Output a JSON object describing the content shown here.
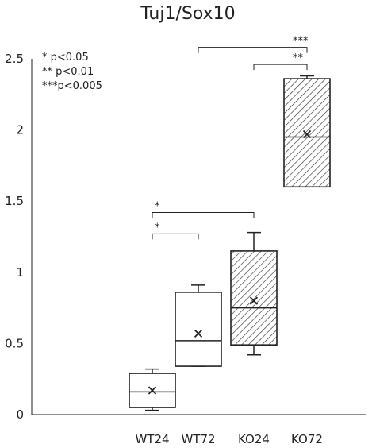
{
  "chart_data": {
    "type": "box",
    "title": "Tuj1/Sox10",
    "xlabel": "",
    "ylabel": "",
    "ylim": [
      0,
      2.5
    ],
    "yticks": [
      "0",
      "0.5",
      "1",
      "1.5",
      "2",
      "2.5"
    ],
    "categories": [
      "WT24",
      "WT72",
      "KO24",
      "KO72"
    ],
    "boxes": [
      {
        "category": "WT24",
        "whisker_low": 0.03,
        "q1": 0.05,
        "median": 0.16,
        "q3": 0.29,
        "whisker_high": 0.32,
        "mean": 0.17,
        "hatched": false
      },
      {
        "category": "WT72",
        "whisker_low": 0.34,
        "q1": 0.34,
        "median": 0.52,
        "q3": 0.86,
        "whisker_high": 0.91,
        "mean": 0.57,
        "hatched": false
      },
      {
        "category": "KO24",
        "whisker_low": 0.42,
        "q1": 0.49,
        "median": 0.75,
        "q3": 1.15,
        "whisker_high": 1.28,
        "mean": 0.8,
        "hatched": true
      },
      {
        "category": "KO72",
        "whisker_low": 1.6,
        "q1": 1.6,
        "median": 1.95,
        "q3": 2.36,
        "whisker_high": 2.38,
        "mean": 1.97,
        "hatched": true
      }
    ],
    "significance": [
      {
        "from": "WT24",
        "to": "WT72",
        "y": 1.27,
        "label": "*"
      },
      {
        "from": "WT24",
        "to": "KO24",
        "y": 1.42,
        "label": "*"
      },
      {
        "from": "KO24",
        "to": "KO72",
        "y": 2.46,
        "label": "**"
      },
      {
        "from": "WT72",
        "to": "KO72",
        "y": 2.58,
        "label": "***"
      }
    ],
    "legend": [
      "*   p<0.05",
      "** p<0.01",
      "***p<0.005"
    ],
    "legend_position": "top-left",
    "grid": false,
    "colors": {
      "line": "#222222",
      "box_fill": "#ffffff",
      "hatch": "#333333"
    }
  }
}
